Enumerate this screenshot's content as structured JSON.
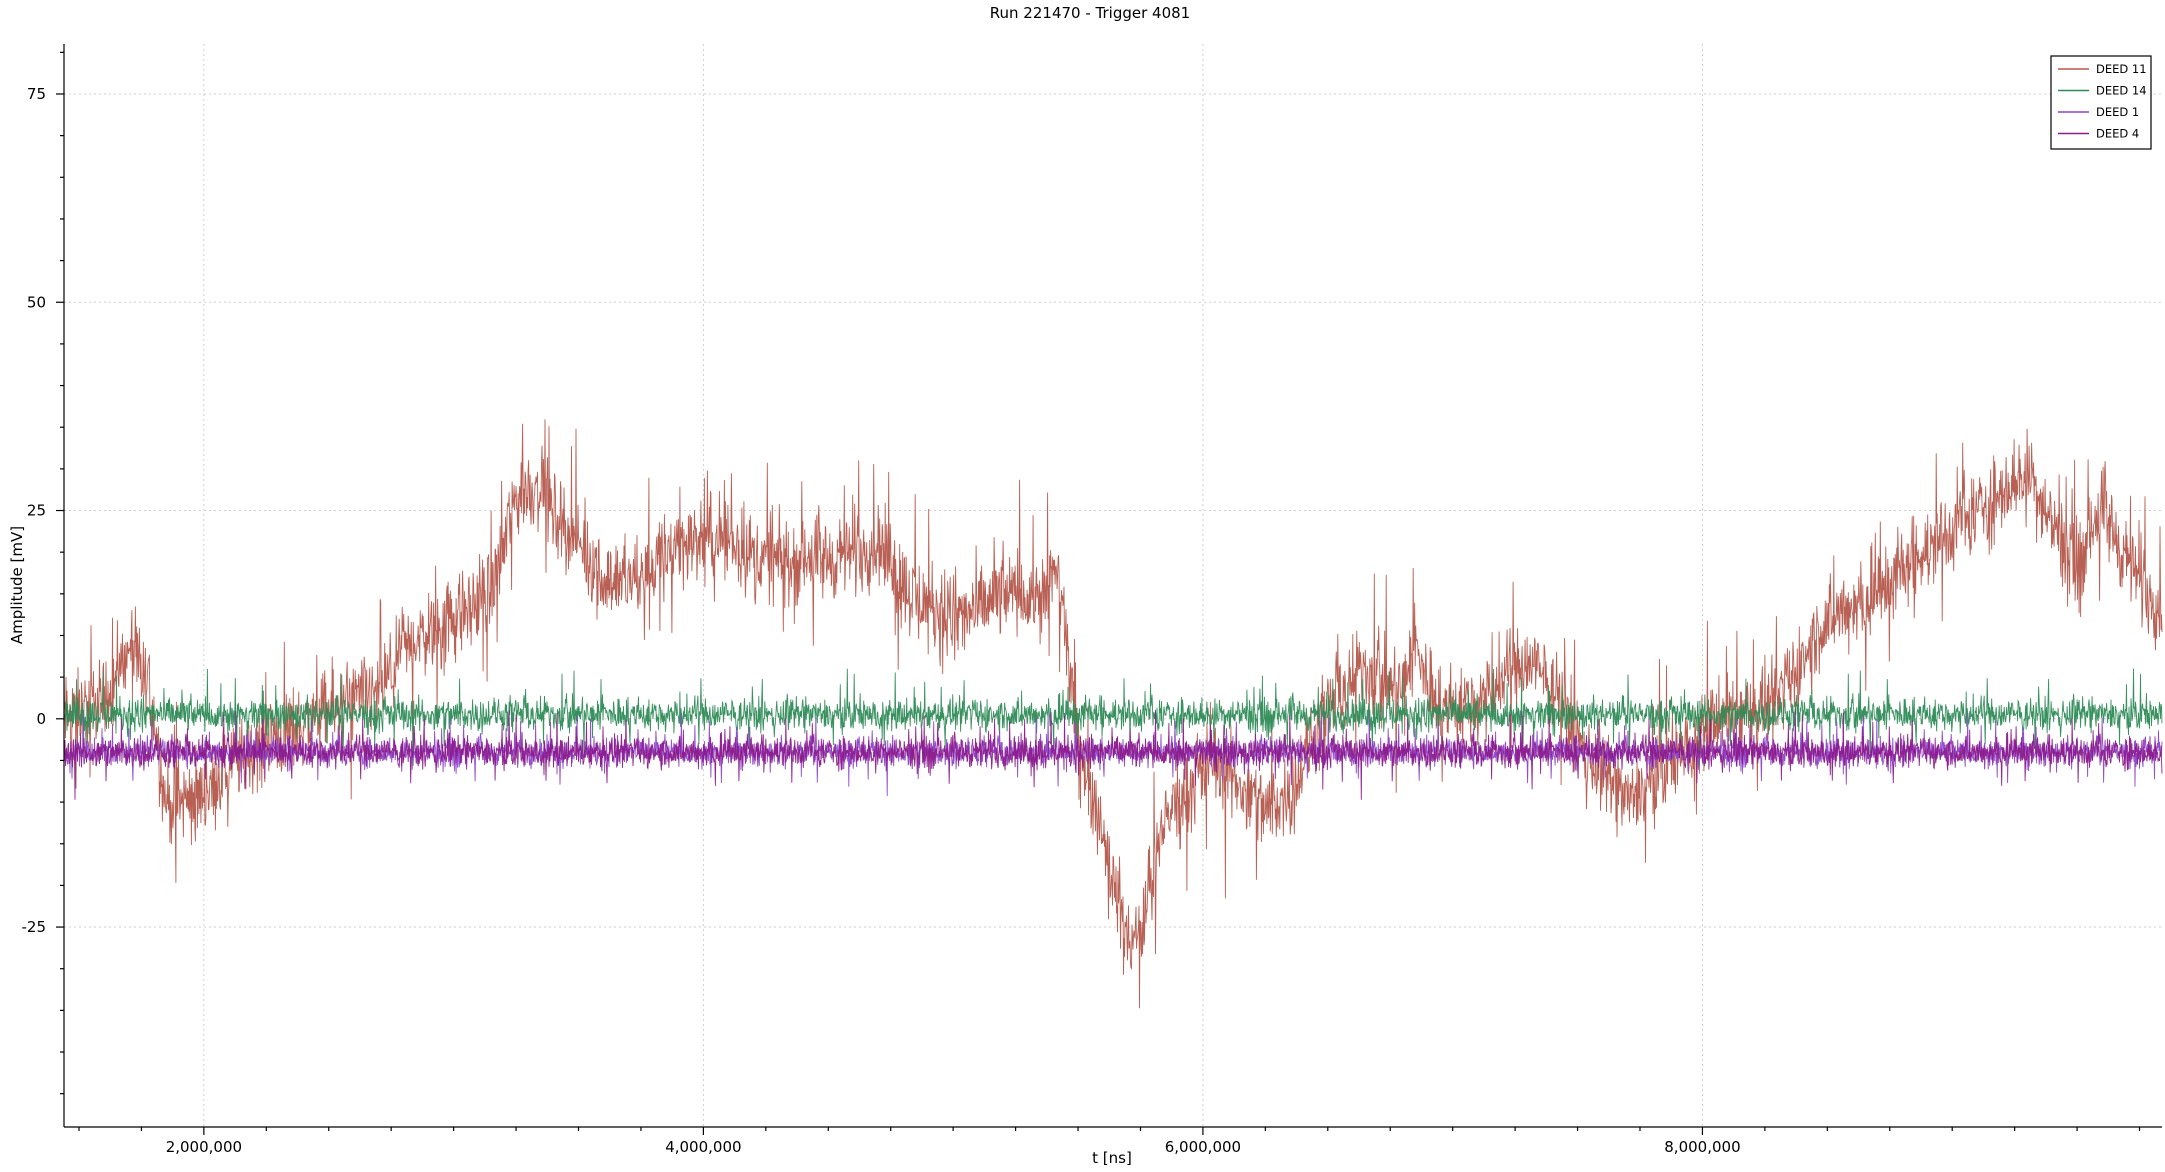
{
  "chart_data": {
    "type": "line",
    "title": "Run 221470 - Trigger 4081",
    "xlabel": "t [ns]",
    "ylabel": "Amplitude [mV]",
    "xlim": [
      1440000,
      9840000
    ],
    "ylim": [
      -49,
      81
    ],
    "x_ticks": [
      2000000,
      4000000,
      6000000,
      8000000
    ],
    "x_tick_labels": [
      "2,000,000",
      "4,000,000",
      "6,000,000",
      "8,000,000"
    ],
    "y_ticks": [
      -25,
      0,
      25,
      50,
      75
    ],
    "y_tick_labels": [
      "-25",
      "0",
      "25",
      "50",
      "75"
    ],
    "grid": true,
    "legend_position": "top-right",
    "series": [
      {
        "name": "DEED 11",
        "color": "#b5574b",
        "noise": 3.5,
        "points": [
          [
            1440000,
            0
          ],
          [
            1600000,
            2
          ],
          [
            1700000,
            8
          ],
          [
            1780000,
            4
          ],
          [
            1850000,
            -10
          ],
          [
            1950000,
            -10
          ],
          [
            2100000,
            -6
          ],
          [
            2300000,
            -2
          ],
          [
            2500000,
            1
          ],
          [
            2700000,
            3
          ],
          [
            2850000,
            10
          ],
          [
            3000000,
            12
          ],
          [
            3150000,
            15
          ],
          [
            3250000,
            27
          ],
          [
            3350000,
            28
          ],
          [
            3450000,
            23
          ],
          [
            3600000,
            17
          ],
          [
            3750000,
            17
          ],
          [
            3900000,
            21
          ],
          [
            4050000,
            22
          ],
          [
            4250000,
            19
          ],
          [
            4500000,
            19
          ],
          [
            4700000,
            21
          ],
          [
            4850000,
            14
          ],
          [
            5050000,
            12
          ],
          [
            5200000,
            15
          ],
          [
            5350000,
            15
          ],
          [
            5420000,
            18
          ],
          [
            5500000,
            -3
          ],
          [
            5600000,
            -14
          ],
          [
            5700000,
            -27
          ],
          [
            5750000,
            -26
          ],
          [
            5850000,
            -12
          ],
          [
            5950000,
            -8
          ],
          [
            6050000,
            -5
          ],
          [
            6150000,
            -8
          ],
          [
            6250000,
            -11
          ],
          [
            6350000,
            -9
          ],
          [
            6450000,
            -2
          ],
          [
            6550000,
            3
          ],
          [
            6650000,
            6
          ],
          [
            6780000,
            3
          ],
          [
            6850000,
            8
          ],
          [
            6950000,
            1
          ],
          [
            7100000,
            2
          ],
          [
            7300000,
            7
          ],
          [
            7420000,
            3
          ],
          [
            7550000,
            -5
          ],
          [
            7700000,
            -10
          ],
          [
            7850000,
            -6
          ],
          [
            8050000,
            0
          ],
          [
            8300000,
            2
          ],
          [
            8500000,
            12
          ],
          [
            8700000,
            15
          ],
          [
            8900000,
            20
          ],
          [
            9050000,
            24
          ],
          [
            9200000,
            27
          ],
          [
            9300000,
            30
          ],
          [
            9400000,
            23
          ],
          [
            9500000,
            19
          ],
          [
            9600000,
            25
          ],
          [
            9700000,
            19
          ],
          [
            9840000,
            13
          ]
        ]
      },
      {
        "name": "DEED 14",
        "color": "#2e8b57",
        "noise": 1.4,
        "points": [
          [
            1440000,
            0.5
          ],
          [
            9840000,
            0.5
          ]
        ]
      },
      {
        "name": "DEED 1",
        "color": "#8e44c8",
        "noise": 1.2,
        "points": [
          [
            1440000,
            -4
          ],
          [
            9840000,
            -4
          ]
        ]
      },
      {
        "name": "DEED 4",
        "color": "#8b1a8b",
        "noise": 1.3,
        "points": [
          [
            1440000,
            -4
          ],
          [
            9840000,
            -4
          ]
        ]
      }
    ]
  }
}
